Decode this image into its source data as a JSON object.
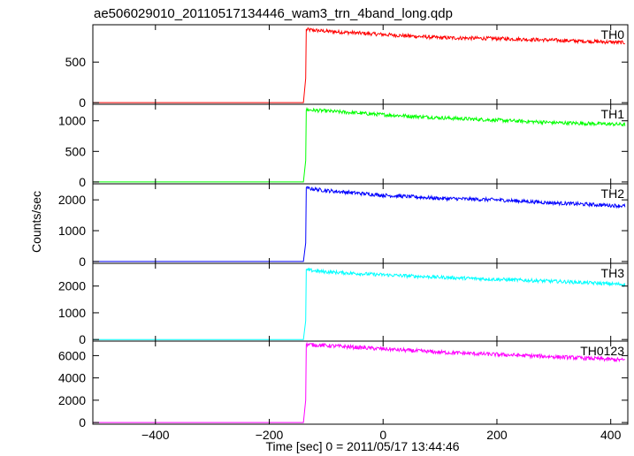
{
  "title": "ae506029010_20110517134446_wam3_trn_4band_long.qdp",
  "chart_data": {
    "type": "line",
    "title": "ae506029010_20110517134446_wam3_trn_4band_long.qdp",
    "xlabel": "Time [sec] 0 = 2011/05/17 13:44:46",
    "ylabel": "Counts/sec",
    "xlim": [
      -510,
      430
    ],
    "xticks": [
      -400,
      -200,
      0,
      200,
      400
    ],
    "x_tick_labels": [
      "−400",
      "−200",
      "0",
      "200",
      "400"
    ],
    "grid": false,
    "legend": "none",
    "step_time": -135,
    "data_end": 425,
    "panels": [
      {
        "name": "TH0",
        "color": "#ff0000",
        "ylim": [
          -20,
          960
        ],
        "yticks": [
          0,
          500
        ],
        "ytick_labels": [
          "0",
          "500"
        ],
        "points": [
          [
            -510,
            0
          ],
          [
            -140,
            0
          ],
          [
            -136,
            300
          ],
          [
            -135,
            900
          ],
          [
            -100,
            880
          ],
          [
            0,
            840
          ],
          [
            100,
            800
          ],
          [
            200,
            790
          ],
          [
            300,
            770
          ],
          [
            425,
            740
          ]
        ]
      },
      {
        "name": "TH1",
        "color": "#00ff00",
        "ylim": [
          -30,
          1270
        ],
        "yticks": [
          0,
          500,
          1000
        ],
        "ytick_labels": [
          "0",
          "500",
          "1000"
        ],
        "points": [
          [
            -510,
            0
          ],
          [
            -140,
            0
          ],
          [
            -136,
            350
          ],
          [
            -135,
            1180
          ],
          [
            -100,
            1160
          ],
          [
            0,
            1100
          ],
          [
            100,
            1050
          ],
          [
            200,
            1010
          ],
          [
            300,
            970
          ],
          [
            425,
            940
          ]
        ]
      },
      {
        "name": "TH2",
        "color": "#0000ff",
        "ylim": [
          -60,
          2520
        ],
        "yticks": [
          0,
          1000,
          2000
        ],
        "ytick_labels": [
          "0",
          "1000",
          "2000"
        ],
        "points": [
          [
            -510,
            0
          ],
          [
            -140,
            0
          ],
          [
            -136,
            600
          ],
          [
            -135,
            2380
          ],
          [
            -100,
            2300
          ],
          [
            0,
            2150
          ],
          [
            100,
            2050
          ],
          [
            200,
            2000
          ],
          [
            300,
            1900
          ],
          [
            425,
            1800
          ]
        ]
      },
      {
        "name": "TH3",
        "color": "#00ffff",
        "ylim": [
          -60,
          2850
        ],
        "yticks": [
          0,
          1000,
          2000
        ],
        "ytick_labels": [
          "0",
          "1000",
          "2000"
        ],
        "points": [
          [
            -510,
            0
          ],
          [
            -140,
            0
          ],
          [
            -136,
            700
          ],
          [
            -135,
            2600
          ],
          [
            -100,
            2530
          ],
          [
            0,
            2420
          ],
          [
            100,
            2330
          ],
          [
            200,
            2250
          ],
          [
            300,
            2180
          ],
          [
            425,
            2060
          ]
        ]
      },
      {
        "name": "TH0123",
        "color": "#ff00ff",
        "ylim": [
          -150,
          7300
        ],
        "yticks": [
          0,
          2000,
          4000,
          6000
        ],
        "ytick_labels": [
          "0",
          "2000",
          "4000",
          "6000"
        ],
        "points": [
          [
            -510,
            0
          ],
          [
            -140,
            0
          ],
          [
            -136,
            2000
          ],
          [
            -135,
            7000
          ],
          [
            -100,
            6900
          ],
          [
            0,
            6600
          ],
          [
            100,
            6300
          ],
          [
            200,
            6100
          ],
          [
            300,
            5900
          ],
          [
            425,
            5600
          ]
        ]
      }
    ]
  }
}
